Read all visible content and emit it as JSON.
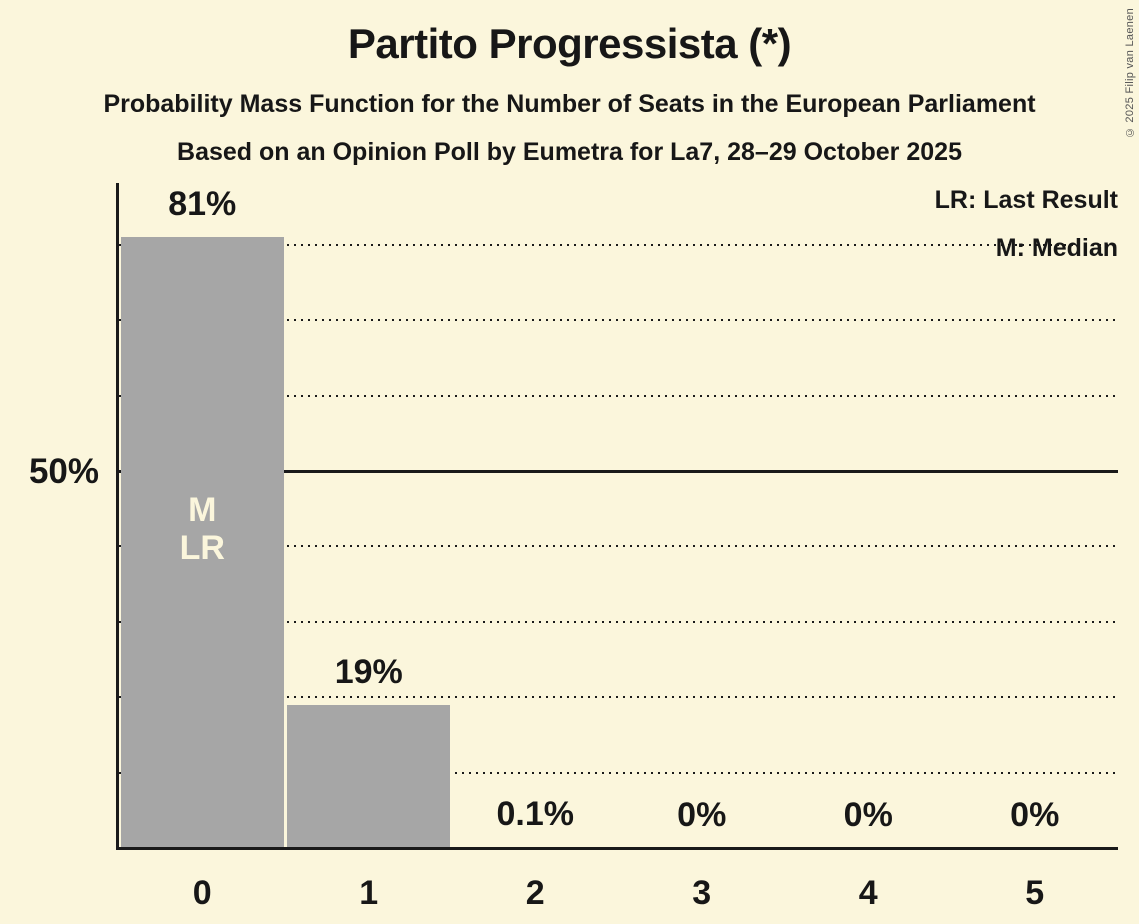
{
  "header": {
    "title": "Partito Progressista (*)",
    "subtitle1": "Probability Mass Function for the Number of Seats in the European Parliament",
    "subtitle2": "Based on an Opinion Poll by Eumetra for La7, 28–29 October 2025"
  },
  "legend": {
    "lr": "LR: Last Result",
    "m": "M: Median"
  },
  "copyright": "© 2025 Filip van Laenen",
  "chart_data": {
    "type": "bar",
    "title": "Partito Progressista (*)",
    "categories": [
      "0",
      "1",
      "2",
      "3",
      "4",
      "5"
    ],
    "values": [
      81,
      19,
      0.1,
      0,
      0,
      0
    ],
    "value_labels": [
      "81%",
      "19%",
      "0.1%",
      "0%",
      "0%",
      "0%"
    ],
    "y_axis_label": "50%",
    "ylim": [
      0,
      88
    ],
    "dotted_gridlines_pct": [
      10,
      20,
      30,
      40,
      60,
      70,
      80
    ],
    "majority_line_pct": 50,
    "median_seat": 0,
    "last_result_seat": 0,
    "bar_annotations": [
      [
        "M",
        "LR"
      ],
      [],
      [],
      [],
      [],
      []
    ],
    "legend_position": "top-right",
    "colors": {
      "background": "#fbf6dc",
      "bar": "#a6a6a6",
      "text": "#171717",
      "annotation_text": "#fbf6dc"
    }
  }
}
